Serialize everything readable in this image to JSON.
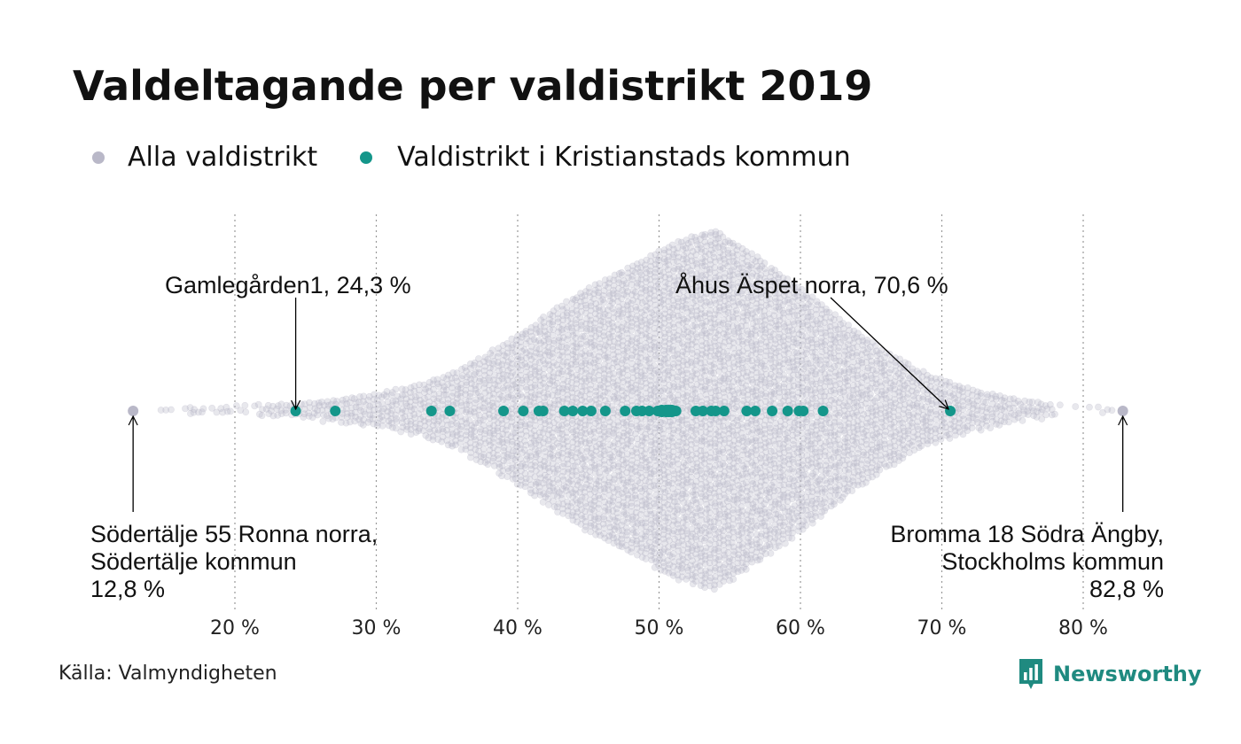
{
  "title": "Valdeltagande per valdistrikt 2019",
  "legend": [
    {
      "label": "Alla valdistrikt",
      "color": "#b9b8c8"
    },
    {
      "label": "Valdistrikt i Kristianstads kommun",
      "color": "#14968a"
    }
  ],
  "source": "Källa: Valmyndigheten",
  "brand": {
    "name": "Newsworthy",
    "color": "#1f8a80",
    "icon": "newsworthy-logo-icon"
  },
  "chart_data": {
    "type": "scatter",
    "subtype": "beeswarm",
    "xlabel": "",
    "ylabel": "",
    "xlim": [
      12,
      84
    ],
    "x_ticks": [
      20,
      30,
      40,
      50,
      60,
      70,
      80
    ],
    "x_tick_labels": [
      "20 %",
      "30 %",
      "40 %",
      "50 %",
      "60 %",
      "70 %",
      "80 %"
    ],
    "grid": "vertical dotted",
    "series": [
      {
        "name": "Alla valdistrikt",
        "color": "#b9b8c8",
        "min": 12.8,
        "max": 82.8,
        "mode": 53.9,
        "note": ""
      },
      {
        "name": "Valdistrikt i Kristianstads kommun",
        "color": "#14968a",
        "values": [
          24.3,
          27.1,
          33.9,
          35.2,
          39.0,
          40.4,
          41.5,
          41.8,
          43.3,
          43.9,
          44.6,
          45.2,
          46.2,
          47.6,
          48.4,
          48.8,
          49.3,
          49.9,
          50.2,
          50.5,
          50.7,
          50.9,
          51.2,
          52.6,
          53.1,
          53.7,
          54.0,
          54.6,
          56.2,
          56.8,
          58.0,
          59.1,
          59.9,
          60.2,
          61.6,
          70.6
        ]
      }
    ],
    "annotations": [
      {
        "lines": [
          "Gamlegården1, 24,3 %"
        ],
        "x": 24.3
      },
      {
        "lines": [
          "Åhus Äspet norra, 70,6 %"
        ],
        "x": 70.6
      },
      {
        "lines": [
          "Södertälje 55 Ronna norra,",
          "Södertälje kommun",
          "12,8 %"
        ],
        "x": 12.8
      },
      {
        "lines": [
          "Bromma 18 Södra Ängby,",
          "Stockholms kommun",
          "82,8 %"
        ],
        "x": 82.8
      }
    ]
  }
}
